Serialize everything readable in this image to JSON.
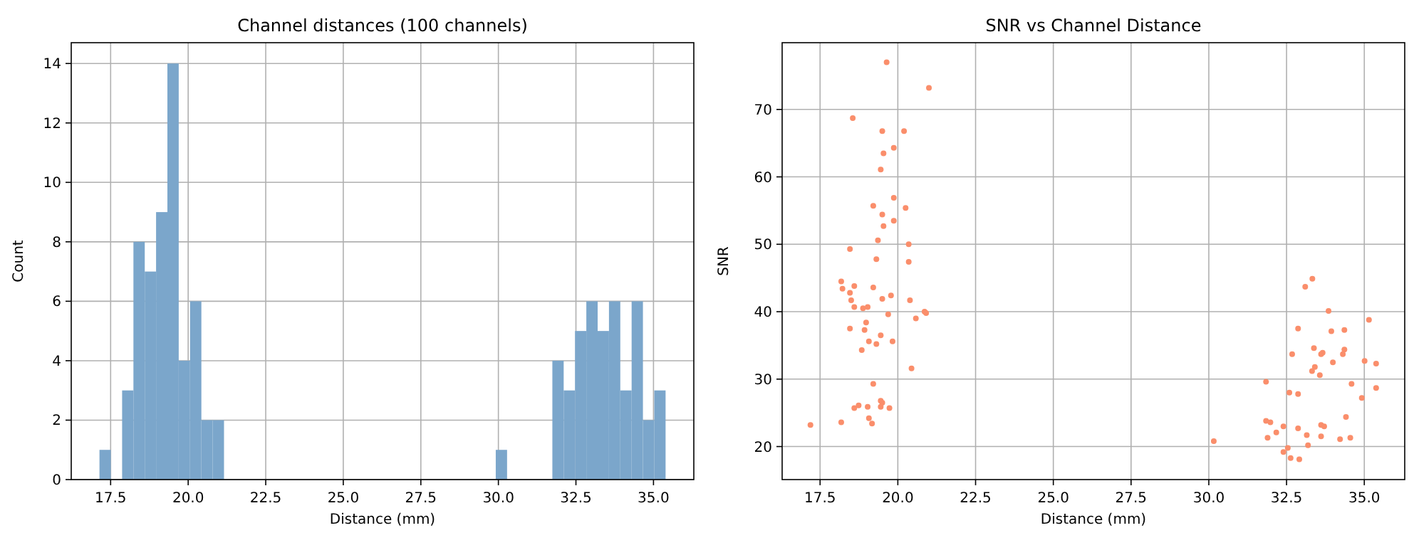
{
  "chart_data": [
    {
      "type": "histogram",
      "title": "Channel distances (100 channels)",
      "xlabel": "Distance (mm)",
      "ylabel": "Count",
      "color": "#7ba6cb",
      "grid": true,
      "bins": [
        17.14,
        17.505,
        17.87,
        18.235,
        18.6,
        18.965,
        19.33,
        19.695,
        20.06,
        20.425,
        20.79,
        21.155,
        21.52,
        21.885,
        22.25,
        22.615,
        22.98,
        23.345,
        23.71,
        24.075,
        24.44,
        24.805,
        25.17,
        25.535,
        25.9,
        26.265,
        26.63,
        26.995,
        27.36,
        27.725,
        28.09,
        28.455,
        28.82,
        29.185,
        29.55,
        29.915,
        30.28,
        30.645,
        31.01,
        31.375,
        31.74,
        32.105,
        32.47,
        32.835,
        33.2,
        33.565,
        33.93,
        34.295,
        34.66,
        35.025,
        35.39
      ],
      "values": [
        1,
        0,
        3,
        8,
        7,
        9,
        14,
        4,
        6,
        2,
        2,
        0,
        0,
        0,
        0,
        0,
        0,
        0,
        0,
        0,
        0,
        0,
        0,
        0,
        0,
        0,
        0,
        0,
        0,
        0,
        0,
        0,
        0,
        0,
        0,
        1,
        0,
        0,
        0,
        0,
        4,
        3,
        5,
        6,
        5,
        6,
        3,
        6,
        2,
        3
      ],
      "xlim": [
        16.23,
        36.3
      ],
      "ylim": [
        0,
        14.7
      ],
      "xticks": [
        {
          "value": 17.5,
          "label": "17.5"
        },
        {
          "value": 20,
          "label": "20.0"
        },
        {
          "value": 22.5,
          "label": "22.5"
        },
        {
          "value": 25,
          "label": "25.0"
        },
        {
          "value": 27.5,
          "label": "27.5"
        },
        {
          "value": 30,
          "label": "30.0"
        },
        {
          "value": 32.5,
          "label": "32.5"
        },
        {
          "value": 35,
          "label": "35.0"
        }
      ],
      "yticks": [
        0,
        2,
        4,
        6,
        8,
        10,
        12,
        14
      ]
    },
    {
      "type": "scatter",
      "title": "SNR vs Channel Distance",
      "xlabel": "Distance (mm)",
      "ylabel": "SNR",
      "color": "#fa8e6b",
      "grid": true,
      "marker": "circle",
      "x": [
        19.64,
        21.0,
        18.55,
        19.5,
        20.2,
        19.87,
        19.54,
        19.45,
        19.87,
        19.21,
        20.25,
        19.5,
        19.87,
        19.54,
        19.36,
        20.35,
        18.46,
        19.31,
        20.35,
        18.18,
        18.22,
        18.6,
        19.21,
        18.46,
        19.78,
        19.5,
        20.39,
        18.5,
        18.6,
        19.03,
        18.88,
        20.86,
        20.91,
        19.69,
        20.58,
        18.98,
        18.46,
        18.93,
        19.45,
        19.07,
        19.83,
        19.31,
        18.84,
        20.44,
        19.21,
        19.45,
        19.5,
        18.74,
        18.6,
        19.03,
        19.45,
        19.73,
        19.07,
        18.18,
        19.17,
        17.19,
        33.33,
        33.1,
        33.85,
        35.15,
        32.87,
        33.94,
        34.36,
        33.38,
        34.36,
        33.66,
        33.61,
        32.68,
        34.31,
        35.01,
        35.38,
        33.99,
        33.41,
        33.32,
        33.57,
        31.84,
        34.59,
        32.59,
        32.87,
        35.38,
        34.92,
        34.41,
        31.84,
        31.98,
        33.61,
        33.71,
        32.4,
        32.87,
        32.17,
        33.15,
        33.61,
        31.89,
        34.22,
        34.55,
        30.16,
        33.19,
        32.54,
        32.4,
        32.63,
        32.91
      ],
      "values": [
        77.0,
        73.2,
        68.7,
        66.8,
        66.8,
        64.3,
        63.5,
        61.1,
        56.9,
        55.7,
        55.4,
        54.4,
        53.5,
        52.7,
        50.6,
        50.0,
        49.3,
        47.8,
        47.4,
        44.5,
        43.4,
        43.8,
        43.6,
        42.8,
        42.4,
        41.9,
        41.7,
        41.7,
        40.7,
        40.7,
        40.5,
        40.0,
        39.8,
        39.6,
        39.0,
        38.4,
        37.5,
        37.3,
        36.5,
        35.6,
        35.6,
        35.2,
        34.3,
        31.6,
        29.3,
        26.8,
        26.5,
        26.1,
        25.7,
        25.9,
        25.9,
        25.7,
        24.2,
        23.6,
        23.4,
        23.2,
        44.9,
        43.7,
        40.1,
        38.8,
        37.5,
        37.1,
        37.3,
        34.6,
        34.4,
        33.9,
        33.7,
        33.7,
        33.7,
        32.7,
        32.3,
        32.5,
        31.8,
        31.2,
        30.6,
        29.6,
        29.3,
        28.0,
        27.8,
        28.7,
        27.2,
        24.4,
        23.8,
        23.6,
        23.2,
        23.0,
        23.0,
        22.7,
        22.1,
        21.7,
        21.5,
        21.3,
        21.1,
        21.3,
        20.8,
        20.2,
        19.8,
        19.2,
        18.3,
        18.1
      ],
      "xlim": [
        16.28,
        36.3
      ],
      "ylim": [
        15.1,
        79.9
      ],
      "xticks": [
        {
          "value": 17.5,
          "label": "17.5"
        },
        {
          "value": 20,
          "label": "20.0"
        },
        {
          "value": 22.5,
          "label": "22.5"
        },
        {
          "value": 25,
          "label": "25.0"
        },
        {
          "value": 27.5,
          "label": "27.5"
        },
        {
          "value": 30,
          "label": "30.0"
        },
        {
          "value": 32.5,
          "label": "32.5"
        },
        {
          "value": 35,
          "label": "35.0"
        }
      ],
      "yticks": [
        20,
        30,
        40,
        50,
        60,
        70
      ]
    }
  ]
}
